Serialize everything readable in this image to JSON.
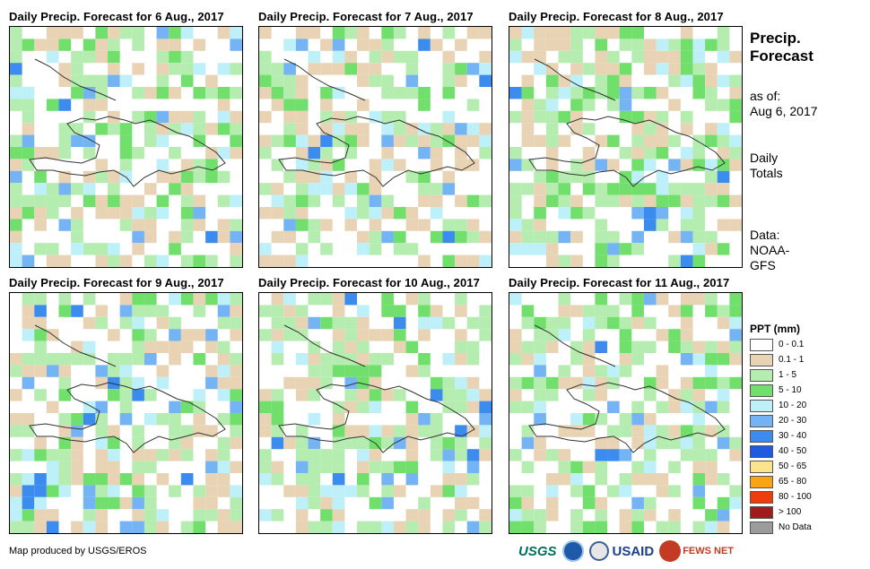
{
  "panels": [
    {
      "title": "Daily Precip. Forecast for 6 Aug., 2017",
      "seed": 6
    },
    {
      "title": "Daily Precip. Forecast for 7 Aug., 2017",
      "seed": 7
    },
    {
      "title": "Daily Precip. Forecast for 8 Aug., 2017",
      "seed": 8
    },
    {
      "title": "Daily Precip. Forecast for 9 Aug., 2017",
      "seed": 9
    },
    {
      "title": "Daily Precip. Forecast for 10 Aug., 2017",
      "seed": 10
    },
    {
      "title": "Daily Precip. Forecast for 11 Aug., 2017",
      "seed": 11
    }
  ],
  "side": {
    "title_line1": "Precip.",
    "title_line2": "Forecast",
    "asof_line1": "as of:",
    "asof_line2": "Aug 6, 2017",
    "daily_line1": "Daily",
    "daily_line2": "Totals",
    "data_line1": "Data:",
    "data_line2": "NOAA-",
    "data_line3": "GFS"
  },
  "legend": {
    "title": "PPT (mm)",
    "items": [
      {
        "label": "0 - 0.1",
        "color": "#ffffff"
      },
      {
        "label": "0.1 - 1",
        "color": "#e8d4b4"
      },
      {
        "label": "1 - 5",
        "color": "#b5ecb0"
      },
      {
        "label": "5 - 10",
        "color": "#70df6c"
      },
      {
        "label": "10 - 20",
        "color": "#bdf0f8"
      },
      {
        "label": "20 - 30",
        "color": "#74b4f4"
      },
      {
        "label": "30 - 40",
        "color": "#3c8cf0"
      },
      {
        "label": "40 - 50",
        "color": "#1c5ce0"
      },
      {
        "label": "50 - 65",
        "color": "#fce48c"
      },
      {
        "label": "65 - 80",
        "color": "#f8a414"
      },
      {
        "label": "80 - 100",
        "color": "#f03c0c"
      },
      {
        "label": "> 100",
        "color": "#a01c1c"
      },
      {
        "label": "No Data",
        "color": "#9c9c9c"
      }
    ]
  },
  "credit": "Map produced by USGS/EROS",
  "logos": {
    "usgs": "USGS",
    "usaid": "USAID",
    "fewsnet": "FEWS NET"
  }
}
